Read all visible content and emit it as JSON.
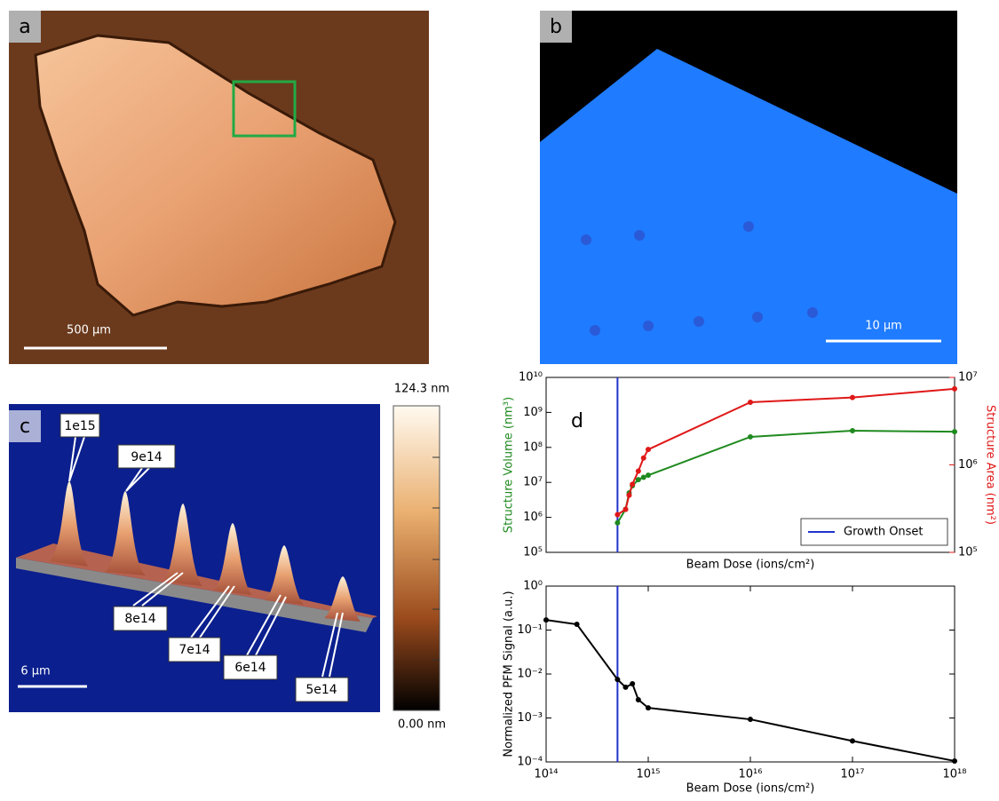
{
  "panels": {
    "a": {
      "label": "a",
      "scale_bar": "500 µm"
    },
    "b": {
      "label": "b",
      "scale_bar": "10 µm"
    },
    "c": {
      "label": "c",
      "scale_bar": "6 µm",
      "colorbar_max": "124.3 nm",
      "colorbar_min": "0.00 nm",
      "peak_labels": [
        "1e15",
        "9e14",
        "8e14",
        "7e14",
        "6e14",
        "5e14"
      ]
    },
    "d": {
      "label": "d"
    }
  },
  "chart_data": [
    {
      "type": "line",
      "x_label": "Beam Dose (ions/cm²)",
      "y_label": "Structure Volume (nm³)",
      "y2_label": "Structure Area (nm²)",
      "xscale": "log",
      "yscale": "log",
      "y2scale": "log",
      "xlim": [
        100000000000000.0,
        1e+18
      ],
      "ylim": [
        100000.0,
        10000000000.0
      ],
      "y2lim": [
        100000.0,
        10000000.0
      ],
      "yticks": [
        {
          "value": 100000.0,
          "label": "10⁵"
        },
        {
          "value": 1000000.0,
          "label": "10⁶"
        },
        {
          "value": 10000000.0,
          "label": "10⁷"
        },
        {
          "value": 100000000.0,
          "label": "10⁸"
        },
        {
          "value": 1000000000.0,
          "label": "10⁹"
        },
        {
          "value": 10000000000.0,
          "label": "10¹⁰"
        }
      ],
      "y2ticks": [
        {
          "value": 100000.0,
          "label": "10⁵"
        },
        {
          "value": 1000000.0,
          "label": "10⁶"
        },
        {
          "value": 10000000.0,
          "label": "10⁷"
        }
      ],
      "x": [
        500000000000000.0,
        600000000000000.0,
        650000000000000.0,
        700000000000000.0,
        800000000000000.0,
        900000000000000.0,
        1000000000000000.0,
        1e+16,
        1e+17,
        1e+18
      ],
      "series": [
        {
          "color": "#1f8a1f",
          "values": [
            700000.0,
            1700000.0,
            5000000.0,
            8000000.0,
            12000000.0,
            14000000.0,
            16000000.0,
            200000000.0,
            300000000.0,
            280000000.0
          ]
        },
        {
          "color": "#e01818",
          "axis": "y2",
          "values": [
            270000.0,
            310000.0,
            450000.0,
            600000.0,
            850000.0,
            1200000.0,
            1500000.0,
            5200000.0,
            5900000.0,
            7400000.0
          ]
        }
      ],
      "vlines": [
        {
          "x": 500000000000000.0,
          "name": "Growth Onset",
          "color": "#2233cc"
        }
      ],
      "legend": "lower right"
    },
    {
      "type": "line",
      "x_label": "Beam Dose (ions/cm²)",
      "y_label": "Normalized PFM Signal (a.u.)",
      "xscale": "log",
      "yscale": "log",
      "xlim": [
        100000000000000.0,
        1e+18
      ],
      "ylim": [
        0.0001,
        1
      ],
      "xticks": [
        {
          "value": 100000000000000.0,
          "label": "10¹⁴"
        },
        {
          "value": 1000000000000000.0,
          "label": "10¹⁵"
        },
        {
          "value": 1e+16,
          "label": "10¹⁶"
        },
        {
          "value": 1e+17,
          "label": "10¹⁷"
        },
        {
          "value": 1e+18,
          "label": "10¹⁸"
        }
      ],
      "yticks": [
        {
          "value": 0.0001,
          "label": "10⁻⁴"
        },
        {
          "value": 0.001,
          "label": "10⁻³"
        },
        {
          "value": 0.01,
          "label": "10⁻²"
        },
        {
          "value": 0.1,
          "label": "10⁻¹"
        },
        {
          "value": 1,
          "label": "10⁰"
        }
      ],
      "x": [
        100000000000000.0,
        200000000000000.0,
        500000000000000.0,
        600000000000000.0,
        700000000000000.0,
        800000000000000.0,
        1000000000000000.0,
        1e+16,
        1e+17,
        1e+18
      ],
      "series": [
        {
          "color": "#000000",
          "values": [
            0.17,
            0.135,
            0.0075,
            0.005,
            0.006,
            0.0026,
            0.0017,
            0.00093,
            0.0003,
            0.000105
          ]
        }
      ],
      "vlines": [
        {
          "x": 500000000000000.0,
          "color": "#2233cc"
        }
      ]
    }
  ]
}
